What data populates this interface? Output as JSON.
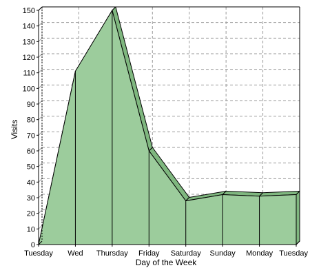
{
  "colors": {
    "area_fill": "#9ccc9c",
    "area_top": "#7fb77f",
    "line": "#000000",
    "grid": "#9a9a9a",
    "background": "#ffffff"
  },
  "chart_data": {
    "type": "area",
    "title": "",
    "xlabel": "Day of the Week",
    "ylabel": "Visits",
    "ylim": [
      0,
      150
    ],
    "yticks": [
      0,
      10,
      20,
      30,
      40,
      50,
      60,
      70,
      80,
      90,
      100,
      110,
      120,
      130,
      140,
      150
    ],
    "grid": true,
    "legend": "none",
    "categories": [
      "Tuesday",
      "Wed",
      "Thursday",
      "Friday",
      "Saturday",
      "Sunday",
      "Monday",
      "Tuesday"
    ],
    "series": [
      {
        "values": [
          0,
          111,
          150,
          60,
          28,
          32,
          31,
          32
        ]
      }
    ]
  }
}
